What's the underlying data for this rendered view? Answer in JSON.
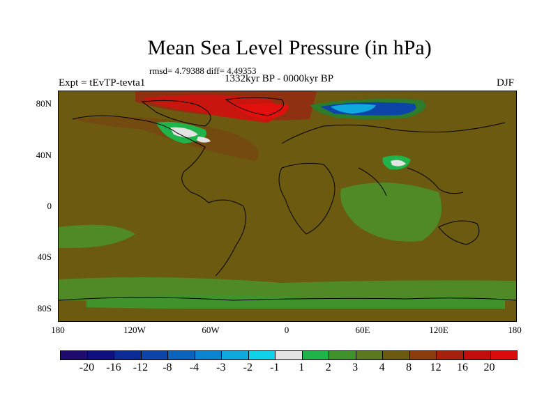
{
  "title": "Mean Sea Level Pressure (in hPa)",
  "stats": "rmsd= 4.79388 diff= 4.49353",
  "experiment": "Expt = tEvTP-tevta1",
  "period": "1332kyr BP - 0000kyr BP",
  "season": "DJF",
  "map": {
    "projection": "cylindrical equidistant",
    "lat_range": [
      -90,
      90
    ],
    "lon_range": [
      -180,
      180
    ],
    "y_ticks": [
      {
        "label": "80N",
        "lat": 80
      },
      {
        "label": "40N",
        "lat": 40
      },
      {
        "label": "0",
        "lat": 0
      },
      {
        "label": "40S",
        "lat": -40
      },
      {
        "label": "80S",
        "lat": -80
      }
    ],
    "x_ticks": [
      {
        "label": "180",
        "lon": -180
      },
      {
        "label": "120W",
        "lon": -120
      },
      {
        "label": "60W",
        "lon": -60
      },
      {
        "label": "0",
        "lon": 0
      },
      {
        "label": "60E",
        "lon": 60
      },
      {
        "label": "120E",
        "lon": 120
      },
      {
        "label": "180",
        "lon": 180
      }
    ],
    "background_level": "4 to 8",
    "features": [
      {
        "region": "Arctic / Greenland",
        "level": "12 to 20"
      },
      {
        "region": "Northern Eurasia / Barents Sea",
        "level": "-8 to -4"
      },
      {
        "region": "Hudson Bay / Canada",
        "level": "-1 to 1"
      },
      {
        "region": "Tibetan Plateau",
        "level": "-1 to 1"
      },
      {
        "region": "Southern Ocean belt",
        "level": "2 to 3"
      },
      {
        "region": "Indian Ocean",
        "level": "3 to 4"
      },
      {
        "region": "North Atlantic",
        "level": "8 to 12"
      }
    ]
  },
  "colorbar": {
    "labels": [
      "-20",
      "-16",
      "-12",
      "-8",
      "-4",
      "-3",
      "-2",
      "-1",
      "1",
      "2",
      "3",
      "4",
      "8",
      "12",
      "16",
      "20"
    ],
    "colors": [
      "#1f0a6e",
      "#0e107f",
      "#0b2a95",
      "#0c44a8",
      "#0a62bd",
      "#0a84cf",
      "#10a9de",
      "#0fd2ea",
      "#e3e3e3",
      "#1fb34a",
      "#3f932a",
      "#5a7a1f",
      "#6b5a0f",
      "#8a3c0c",
      "#a5210d",
      "#c20d0d",
      "#d90b0b"
    ]
  }
}
